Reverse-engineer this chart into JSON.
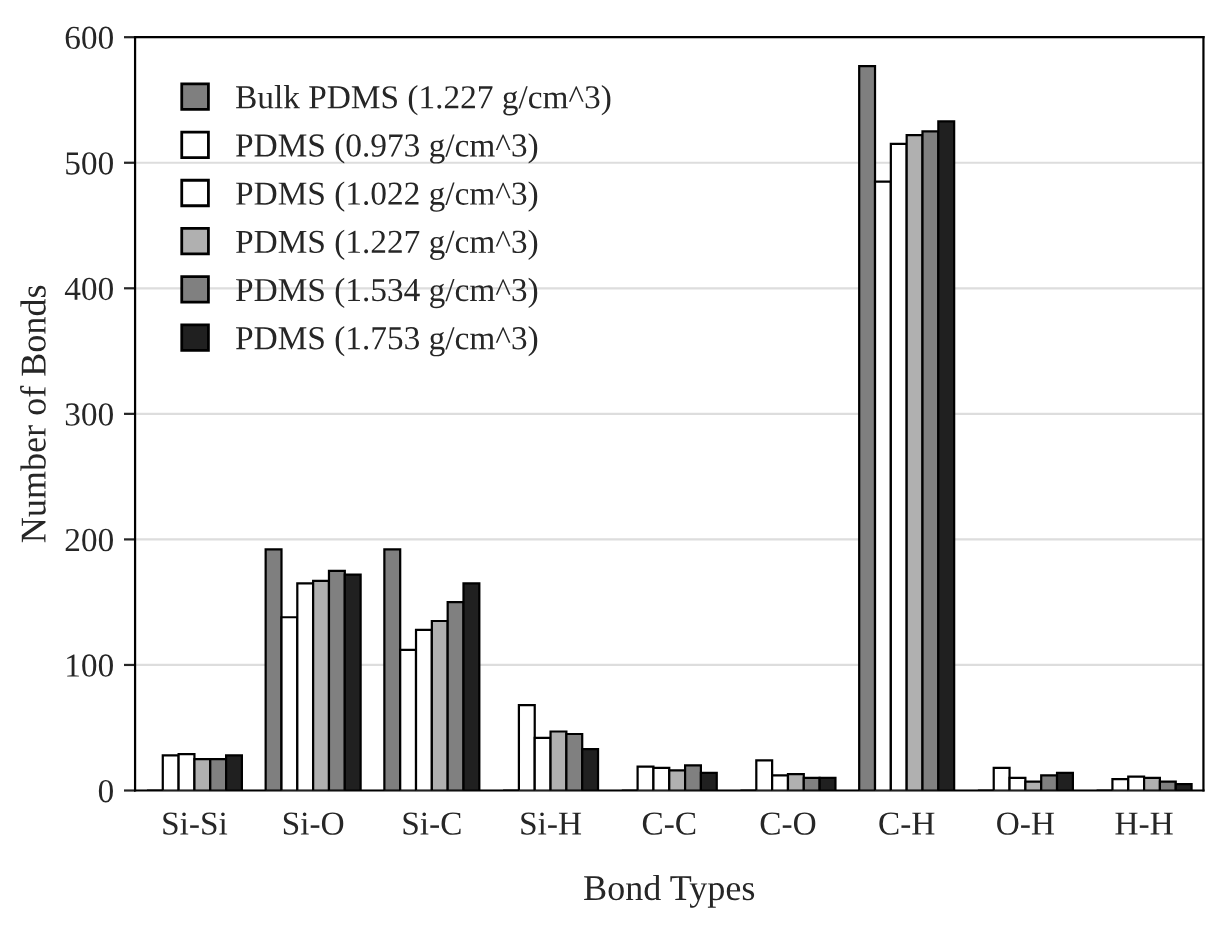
{
  "chart_data": {
    "type": "bar",
    "xlabel": "Bond Types",
    "ylabel": "Number of Bonds",
    "categories": [
      "Si-Si",
      "Si-O",
      "Si-C",
      "Si-H",
      "C-C",
      "C-O",
      "C-H",
      "O-H",
      "H-H"
    ],
    "series": [
      {
        "name": "Bulk PDMS (1.227 g/cm^3)",
        "color": "#7f7f7f",
        "values": [
          0,
          192,
          192,
          0,
          0,
          0,
          577,
          0,
          0
        ]
      },
      {
        "name": "PDMS (0.973 g/cm^3)",
        "color": "#ffffff",
        "values": [
          28,
          138,
          112,
          68,
          19,
          24,
          485,
          18,
          9
        ]
      },
      {
        "name": "PDMS (1.022 g/cm^3)",
        "color": "#ffffff",
        "values": [
          29,
          165,
          128,
          42,
          18,
          12,
          515,
          10,
          11
        ]
      },
      {
        "name": "PDMS (1.227 g/cm^3)",
        "color": "#b0b0b0",
        "values": [
          25,
          167,
          135,
          47,
          16,
          13,
          522,
          7,
          10
        ]
      },
      {
        "name": "PDMS (1.534 g/cm^3)",
        "color": "#808080",
        "values": [
          25,
          175,
          150,
          45,
          20,
          10,
          525,
          12,
          7
        ]
      },
      {
        "name": "PDMS (1.753 g/cm^3)",
        "color": "#202020",
        "values": [
          28,
          172,
          165,
          33,
          14,
          10,
          533,
          14,
          5
        ]
      }
    ],
    "ylim": [
      0,
      600
    ],
    "yticks": [
      0,
      100,
      200,
      300,
      400,
      500,
      600
    ],
    "grid": "y",
    "legend": "top left"
  }
}
